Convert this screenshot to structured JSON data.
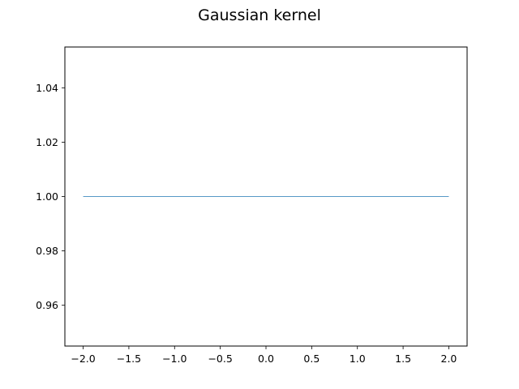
{
  "chart_data": {
    "type": "line",
    "title": "Gaussian kernel",
    "xlabel": "",
    "ylabel": "",
    "xlim": [
      -2.2,
      2.2
    ],
    "ylim": [
      0.945,
      1.055
    ],
    "xticks": [
      -2.0,
      -1.5,
      -1.0,
      -0.5,
      0.0,
      0.5,
      1.0,
      1.5,
      2.0
    ],
    "xtick_labels": [
      "−2.0",
      "−1.5",
      "−1.0",
      "−0.5",
      "0.0",
      "0.5",
      "1.0",
      "1.5",
      "2.0"
    ],
    "yticks": [
      0.96,
      0.98,
      1.0,
      1.02,
      1.04
    ],
    "ytick_labels": [
      "0.96",
      "0.98",
      "1.00",
      "1.02",
      "1.04"
    ],
    "grid": false,
    "series": [
      {
        "color": "#1f77b4",
        "x": [
          -2.0,
          -1.5,
          -1.0,
          -0.5,
          0.0,
          0.5,
          1.0,
          1.5,
          2.0
        ],
        "y": [
          1.0,
          1.0,
          1.0,
          1.0,
          1.0,
          1.0,
          1.0,
          1.0,
          1.0
        ]
      }
    ]
  }
}
